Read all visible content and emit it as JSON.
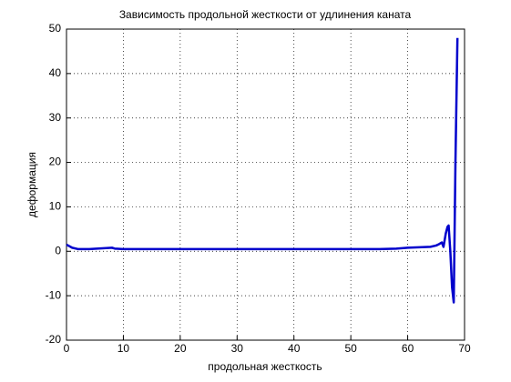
{
  "chart_data": {
    "type": "line",
    "title": "Зависимость продольной жесткости от удлинения каната",
    "x_label": "продольная жесткость",
    "y_label": "деформация",
    "x": [
      0,
      1,
      2,
      4,
      8,
      8.5,
      10,
      20,
      30,
      40,
      50,
      55,
      58,
      60,
      62,
      64,
      65,
      65.5,
      66,
      66.3,
      66.7,
      67.0,
      67.2,
      67.5,
      67.8,
      68.1,
      68.4,
      68.75
    ],
    "series": [
      {
        "name": "деформация",
        "color": "#0000cc",
        "values": [
          1.5,
          0.8,
          0.5,
          0.5,
          0.8,
          0.6,
          0.5,
          0.5,
          0.5,
          0.5,
          0.5,
          0.5,
          0.6,
          0.8,
          0.9,
          1.0,
          1.3,
          1.6,
          2,
          1.0,
          4,
          5.5,
          5.8,
          0,
          -8,
          -11.5,
          20,
          48
        ]
      }
    ],
    "xlim": [
      0,
      70
    ],
    "ylim": [
      -20,
      50
    ],
    "xticks": [
      0,
      10,
      20,
      30,
      40,
      50,
      60,
      70
    ],
    "yticks": [
      -20,
      -10,
      0,
      10,
      20,
      30,
      40,
      50
    ],
    "grid": true
  }
}
